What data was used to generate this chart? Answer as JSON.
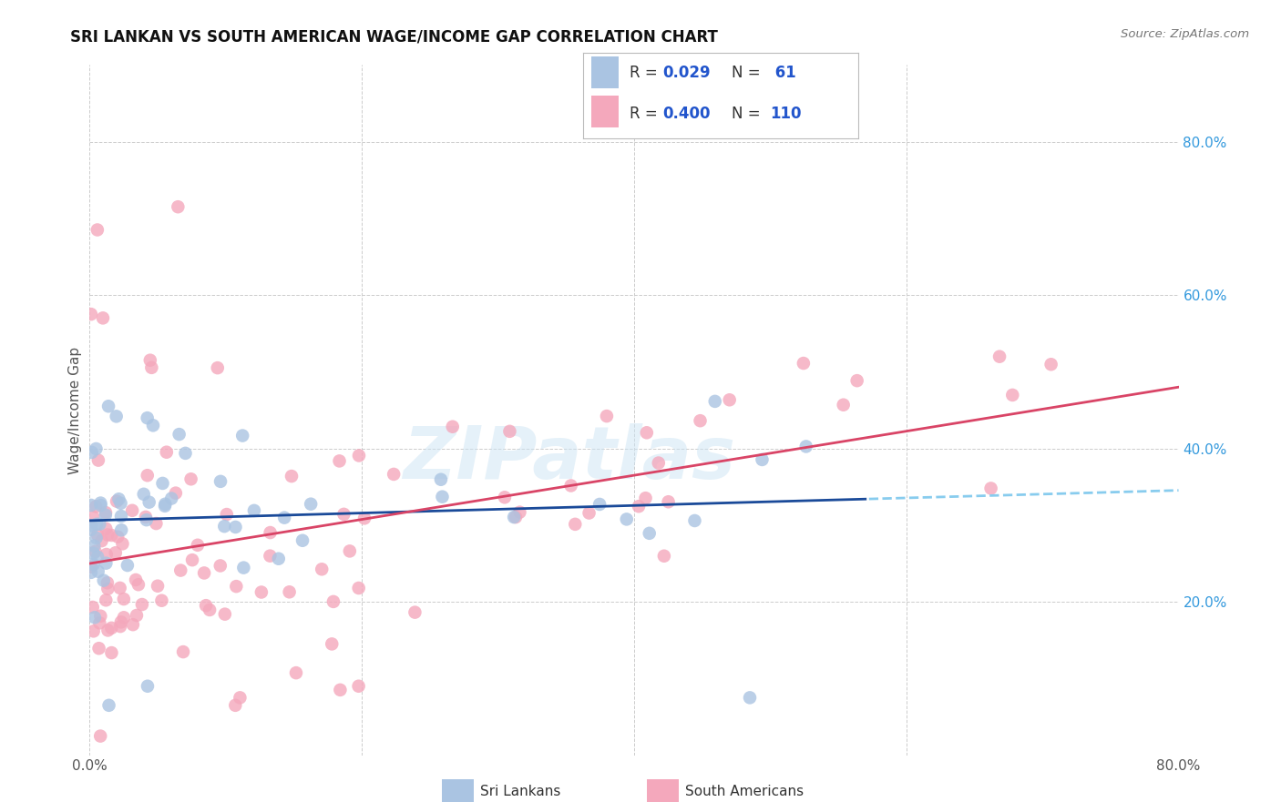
{
  "title": "SRI LANKAN VS SOUTH AMERICAN WAGE/INCOME GAP CORRELATION CHART",
  "source": "Source: ZipAtlas.com",
  "ylabel": "Wage/Income Gap",
  "sri_lankan_R": 0.029,
  "sri_lankan_N": 61,
  "south_american_R": 0.4,
  "south_american_N": 110,
  "sri_lankan_color": "#aac4e2",
  "south_american_color": "#f4a8bc",
  "sri_lankan_line_color": "#1a4a99",
  "south_american_line_color": "#d94466",
  "dashed_line_color": "#88ccee",
  "watermark_text": "ZIPatlas",
  "background_color": "#ffffff",
  "grid_color": "#cccccc",
  "x_min": 0.0,
  "x_max": 0.8,
  "y_min": 0.0,
  "y_max": 0.9,
  "sri_lankans_label": "Sri Lankans",
  "south_americans_label": "South Americans",
  "legend_R_color": "#2255cc",
  "legend_text_color": "#333333",
  "title_color": "#111111",
  "source_color": "#777777",
  "ytick_color": "#3399dd",
  "xtick_color": "#555555"
}
